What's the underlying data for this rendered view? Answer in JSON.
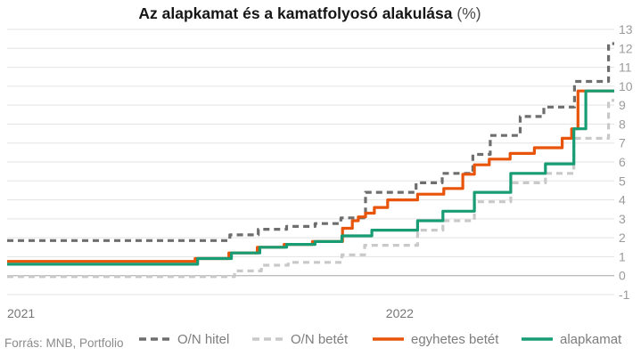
{
  "chart_data": {
    "type": "line",
    "title": "Az alapkamat és a kamatfolyosó alakulása",
    "title_suffix": "(%)",
    "source": "Forrás: MNB, Portfolio",
    "x_axis": {
      "labels": [
        "2021",
        "2022"
      ],
      "label_months": [
        0,
        12
      ],
      "months_start": -0.06,
      "months_end": 19.18
    },
    "y_axis": {
      "min": -1,
      "max": 13,
      "ticks": [
        13,
        12,
        11,
        10,
        9,
        8,
        7,
        6,
        5,
        4,
        3,
        2,
        1,
        0,
        -1
      ]
    },
    "legend_position": "bottom",
    "grid": true,
    "series": [
      {
        "name": "O/N betét",
        "style": "dashed",
        "color": "#c9c9c9",
        "points": [
          [
            -0.06,
            -0.05
          ],
          [
            7.15,
            0.25
          ],
          [
            8.0,
            0.55
          ],
          [
            8.85,
            0.7
          ],
          [
            10.55,
            1.1
          ],
          [
            11.27,
            1.6
          ],
          [
            12.95,
            2.4
          ],
          [
            13.75,
            2.9
          ],
          [
            14.75,
            3.9
          ],
          [
            15.9,
            4.9
          ],
          [
            17.0,
            5.4
          ],
          [
            17.9,
            7.25
          ],
          [
            19.0,
            9.25
          ],
          [
            19.18,
            9.25
          ]
        ]
      },
      {
        "name": "O/N hitel",
        "style": "dashed",
        "color": "#6e6e6e",
        "points": [
          [
            -0.06,
            1.85
          ],
          [
            7.0,
            2.15
          ],
          [
            7.9,
            2.45
          ],
          [
            8.8,
            2.6
          ],
          [
            9.7,
            2.75
          ],
          [
            10.52,
            3.05
          ],
          [
            11.3,
            4.4
          ],
          [
            12.9,
            4.9
          ],
          [
            13.73,
            5.4
          ],
          [
            14.7,
            6.4
          ],
          [
            15.25,
            7.4
          ],
          [
            16.2,
            8.4
          ],
          [
            16.95,
            8.9
          ],
          [
            17.92,
            10.25
          ],
          [
            19.0,
            12.25
          ],
          [
            19.18,
            12.25
          ]
        ]
      },
      {
        "name": "egyhetes betét",
        "style": "solid",
        "color": "#e8540a",
        "points": [
          [
            -0.06,
            0.75
          ],
          [
            5.9,
            0.9
          ],
          [
            6.97,
            1.2
          ],
          [
            7.87,
            1.5
          ],
          [
            8.72,
            1.65
          ],
          [
            9.62,
            1.8
          ],
          [
            10.57,
            2.5
          ],
          [
            10.88,
            2.9
          ],
          [
            11.07,
            3.1
          ],
          [
            11.3,
            3.3
          ],
          [
            11.58,
            3.6
          ],
          [
            12.0,
            4.0
          ],
          [
            12.95,
            4.3
          ],
          [
            13.78,
            4.6
          ],
          [
            14.38,
            5.35
          ],
          [
            14.75,
            5.85
          ],
          [
            15.22,
            6.15
          ],
          [
            15.88,
            6.45
          ],
          [
            16.65,
            6.75
          ],
          [
            17.53,
            7.25
          ],
          [
            17.83,
            7.75
          ],
          [
            18.03,
            9.75
          ],
          [
            19.18,
            9.75
          ]
        ]
      },
      {
        "name": "alapkamat",
        "style": "solid",
        "color": "#179c74",
        "points": [
          [
            -0.06,
            0.6
          ],
          [
            5.98,
            0.9
          ],
          [
            7.05,
            1.2
          ],
          [
            7.95,
            1.5
          ],
          [
            8.8,
            1.65
          ],
          [
            9.7,
            1.8
          ],
          [
            10.55,
            2.1
          ],
          [
            11.5,
            2.4
          ],
          [
            12.95,
            2.9
          ],
          [
            13.75,
            3.4
          ],
          [
            14.75,
            4.4
          ],
          [
            15.9,
            5.4
          ],
          [
            17.0,
            5.9
          ],
          [
            17.9,
            7.75
          ],
          [
            18.28,
            9.75
          ],
          [
            19.18,
            9.75
          ]
        ]
      }
    ],
    "legend_order": [
      "O/N hitel",
      "O/N betét",
      "egyhetes betét",
      "alapkamat"
    ],
    "legend_lefts": [
      155,
      282,
      417,
      584
    ]
  }
}
